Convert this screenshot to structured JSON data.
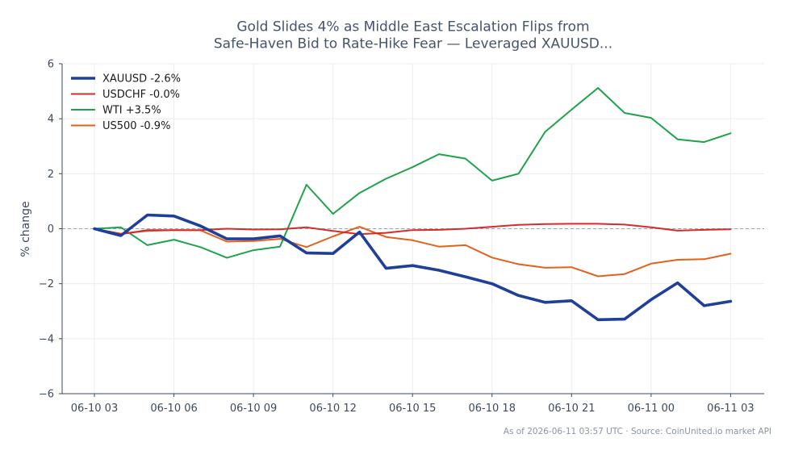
{
  "chart_data": {
    "type": "line",
    "title_line1": "Gold Slides 4% as Middle East Escalation Flips from",
    "title_line2": "Safe-Haven Bid to Rate-Hike Fear — Leveraged XAUUSD...",
    "ylabel": "% change",
    "xlabel": "",
    "ylim": [
      -6,
      6
    ],
    "yticks": [
      6,
      4,
      2,
      0,
      -2,
      -4,
      -6
    ],
    "ytick_labels": [
      "6",
      "4",
      "2",
      "0",
      "−2",
      "−4",
      "−6"
    ],
    "x_tick_labels": [
      "06-10 03",
      "06-10 06",
      "06-10 09",
      "06-10 12",
      "06-10 15",
      "06-10 18",
      "06-10 21",
      "06-11 00",
      "06-11 03"
    ],
    "x_tick_hours": [
      0,
      3,
      6,
      9,
      12,
      15,
      18,
      21,
      24
    ],
    "x_hours": [
      0,
      1,
      2,
      3,
      4,
      5,
      6,
      7,
      8,
      9,
      10,
      11,
      12,
      13,
      14,
      15,
      16,
      17,
      18,
      19,
      20,
      21,
      22,
      23,
      24
    ],
    "grid": true,
    "zero_line": "dashed",
    "legend_position": "top-left",
    "series": [
      {
        "name": "XAUUSD -2.6%",
        "color": "#1f3f9a",
        "width": 3.6,
        "values": [
          0.0,
          -0.25,
          0.5,
          0.46,
          0.1,
          -0.37,
          -0.37,
          -0.26,
          -0.88,
          -0.9,
          -0.12,
          -1.44,
          -1.34,
          -1.51,
          -1.75,
          -2.0,
          -2.43,
          -2.68,
          -2.62,
          -3.31,
          -3.29,
          -2.58,
          -1.97,
          -2.8,
          -2.64
        ]
      },
      {
        "name": "USDCHF -0.0%",
        "color": "#d62b2b",
        "width": 2,
        "values": [
          0.0,
          -0.2,
          -0.05,
          -0.05,
          -0.05,
          0.0,
          -0.03,
          -0.02,
          0.05,
          -0.08,
          -0.2,
          -0.15,
          -0.05,
          -0.04,
          0.0,
          0.07,
          0.14,
          0.17,
          0.18,
          0.18,
          0.15,
          0.05,
          -0.07,
          -0.04,
          -0.02
        ]
      },
      {
        "name": "WTI +3.5%",
        "color": "#1fa34a",
        "width": 2,
        "values": [
          0.0,
          0.05,
          -0.6,
          -0.4,
          -0.67,
          -1.06,
          -0.78,
          -0.65,
          1.6,
          0.54,
          1.3,
          1.82,
          2.24,
          2.71,
          2.55,
          1.75,
          2.0,
          3.52,
          4.33,
          5.12,
          4.21,
          4.03,
          3.25,
          3.15,
          3.47
        ]
      },
      {
        "name": "US500 -0.9%",
        "color": "#e2621b",
        "width": 2,
        "values": [
          0.0,
          -0.18,
          -0.08,
          -0.05,
          -0.06,
          -0.47,
          -0.45,
          -0.37,
          -0.67,
          -0.28,
          0.07,
          -0.3,
          -0.42,
          -0.65,
          -0.6,
          -1.05,
          -1.29,
          -1.42,
          -1.4,
          -1.73,
          -1.65,
          -1.27,
          -1.13,
          -1.11,
          -0.91
        ]
      }
    ]
  },
  "footer": "As of 2026-06-11 03:57 UTC · Source: CoinUnited.io market API"
}
